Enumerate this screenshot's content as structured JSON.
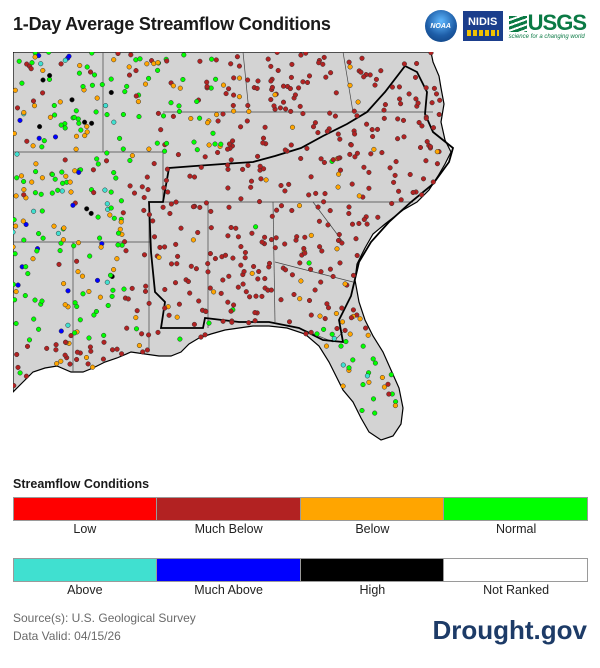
{
  "header": {
    "title": "1-Day Average Streamflow Conditions"
  },
  "logos": {
    "noaa": "NOAA",
    "nidis": "NIDIS",
    "usgs": "USGS",
    "usgs_tagline": "science for a changing world"
  },
  "map": {
    "land_color": "#d3d3d3",
    "water_color": "#ffffff",
    "icons": [
      "gauge-dot"
    ]
  },
  "legend": {
    "title": "Streamflow Conditions",
    "classes": [
      {
        "label": "Low",
        "color": "#ff0000"
      },
      {
        "label": "Much Below",
        "color": "#b22222"
      },
      {
        "label": "Below",
        "color": "#ffa500"
      },
      {
        "label": "Normal",
        "color": "#00ff00"
      },
      {
        "label": "Above",
        "color": "#40e0d0"
      },
      {
        "label": "Much Above",
        "color": "#0000ff"
      },
      {
        "label": "High",
        "color": "#000000"
      },
      {
        "label": "Not Ranked",
        "color": "#ffffff"
      }
    ]
  },
  "footer": {
    "source": "Source(s): U.S. Geological Survey",
    "valid": "Data Valid: 04/15/26",
    "site": "Drought.gov"
  }
}
